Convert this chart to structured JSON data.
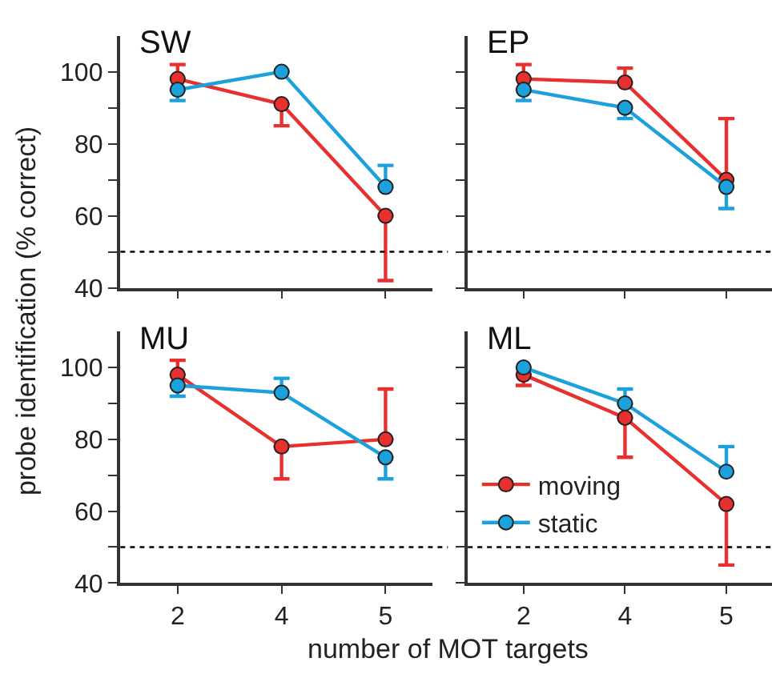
{
  "chart_data": [
    {
      "type": "line",
      "title": "SW",
      "ylabel": "probe identification (% correct)",
      "categories": [
        "2",
        "4",
        "5"
      ],
      "ylim": [
        40,
        110
      ],
      "yticks": [
        40,
        {
          "value": 50,
          "label": null
        },
        60,
        {
          "value": 70,
          "label": null
        },
        80,
        {
          "value": 90,
          "label": null
        },
        100
      ],
      "tick_labels": "y",
      "marker": "circle",
      "line_style": "solid",
      "ref_lines": [
        {
          "axis": "y",
          "value": 50,
          "color": "#000000",
          "line_style": "dotted"
        }
      ],
      "series": [
        {
          "color": "#e8312f",
          "values": [
            98,
            91,
            60
          ],
          "errors": [
            [
              98,
              102
            ],
            [
              85,
              91
            ],
            [
              42,
              60
            ]
          ]
        },
        {
          "color": "#1da1dc",
          "values": [
            95,
            100,
            68
          ],
          "errors": [
            [
              92,
              95
            ],
            null,
            [
              68,
              74
            ]
          ]
        }
      ]
    },
    {
      "type": "line",
      "title": "EP",
      "categories": [
        "2",
        "4",
        "5"
      ],
      "ylim": [
        40,
        110
      ],
      "yticks": [
        {
          "value": 40,
          "label": null
        },
        {
          "value": 50,
          "label": null
        },
        {
          "value": 60,
          "label": null
        },
        {
          "value": 70,
          "label": null
        },
        {
          "value": 80,
          "label": null
        },
        {
          "value": 90,
          "label": null
        },
        {
          "value": 100,
          "label": null
        }
      ],
      "tick_labels": false,
      "marker": "circle",
      "line_style": "solid",
      "ref_lines": [
        {
          "axis": "y",
          "value": 50,
          "color": "#000000",
          "line_style": "dotted"
        }
      ],
      "series": [
        {
          "color": "#e8312f",
          "values": [
            98,
            97,
            70
          ],
          "errors": [
            [
              98,
              102
            ],
            [
              97,
              101
            ],
            [
              70,
              87
            ]
          ]
        },
        {
          "color": "#1da1dc",
          "values": [
            95,
            90,
            68
          ],
          "errors": [
            [
              92,
              95
            ],
            [
              87,
              90
            ],
            [
              62,
              68
            ]
          ]
        }
      ]
    },
    {
      "type": "line",
      "title": "MU",
      "categories": [
        "2",
        "4",
        "5"
      ],
      "ylim": [
        40,
        110
      ],
      "yticks": [
        40,
        {
          "value": 50,
          "label": null
        },
        60,
        {
          "value": 70,
          "label": null
        },
        80,
        {
          "value": 90,
          "label": null
        },
        100
      ],
      "marker": "circle",
      "line_style": "solid",
      "ref_lines": [
        {
          "axis": "y",
          "value": 50,
          "color": "#000000",
          "line_style": "dotted"
        }
      ],
      "series": [
        {
          "color": "#e8312f",
          "values": [
            98,
            78,
            80
          ],
          "errors": [
            [
              98,
              102
            ],
            [
              69,
              78
            ],
            [
              80,
              94
            ]
          ]
        },
        {
          "color": "#1da1dc",
          "values": [
            95,
            93,
            75
          ],
          "errors": [
            [
              92,
              95
            ],
            [
              93,
              97
            ],
            [
              69,
              75
            ]
          ]
        }
      ]
    },
    {
      "type": "line",
      "title": "ML",
      "xlabel": "number of MOT targets",
      "categories": [
        "2",
        "4",
        "5"
      ],
      "ylim": [
        40,
        110
      ],
      "yticks": [
        {
          "value": 40,
          "label": null
        },
        {
          "value": 50,
          "label": null
        },
        {
          "value": 60,
          "label": null
        },
        {
          "value": 70,
          "label": null
        },
        {
          "value": 80,
          "label": null
        },
        {
          "value": 90,
          "label": null
        },
        {
          "value": 100,
          "label": null
        }
      ],
      "tick_labels": "x",
      "marker": "circle",
      "line_style": "solid",
      "legend": "left",
      "ref_lines": [
        {
          "axis": "y",
          "value": 50,
          "color": "#000000",
          "line_style": "dotted"
        }
      ],
      "series": [
        {
          "name": "moving",
          "color": "#e8312f",
          "values": [
            98,
            86,
            62
          ],
          "errors": [
            [
              95,
              98
            ],
            [
              75,
              86
            ],
            [
              45,
              62
            ]
          ]
        },
        {
          "name": "static",
          "color": "#1da1dc",
          "values": [
            100,
            90,
            71
          ],
          "errors": [
            null,
            [
              90,
              94
            ],
            [
              71,
              78
            ]
          ]
        }
      ]
    }
  ]
}
